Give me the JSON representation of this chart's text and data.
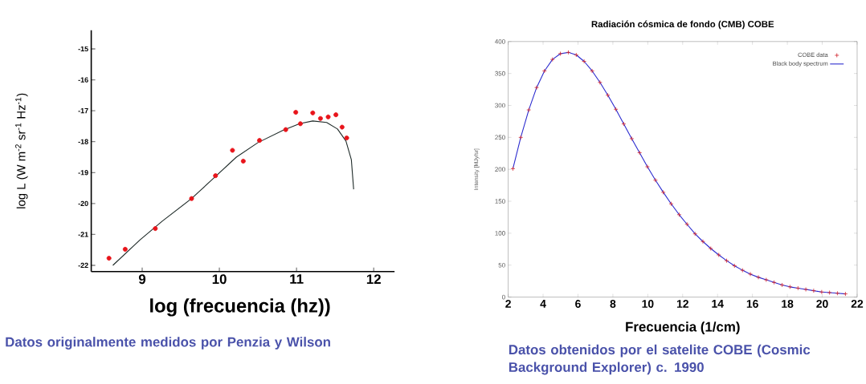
{
  "chart_data": [
    {
      "type": "scatter",
      "xlabel": "log (frecuencia (hz))",
      "ylabel": "log  L (W m$^{-2}$ sr$^{-1}$ Hz$^{-1}$)",
      "annotations": [
        "Datos originalmente medidos por Penzia y Wilson"
      ],
      "xlim": [
        8.34,
        12.27
      ],
      "ylim": [
        -22.2,
        -14.4
      ],
      "xticks": [
        9,
        10,
        11,
        12
      ],
      "yticks": [
        -22,
        -21,
        -20,
        -19,
        -18,
        -17,
        -16,
        -15
      ],
      "series": [
        {
          "marker": "circle",
          "color": "#e8141b",
          "x": [
            8.57,
            8.78,
            9.17,
            9.64,
            9.95,
            10.17,
            10.31,
            10.52,
            10.86,
            10.99,
            11.05,
            11.21,
            11.31,
            11.41,
            11.51,
            11.59,
            11.65
          ],
          "values": [
            -21.77,
            -21.48,
            -20.81,
            -19.84,
            -19.1,
            -18.28,
            -18.63,
            -17.96,
            -17.61,
            -17.05,
            -17.42,
            -17.07,
            -17.25,
            -17.2,
            -17.13,
            -17.53,
            -17.88
          ]
        },
        {
          "type": "line",
          "color": "#1e2a28",
          "x": [
            8.62,
            8.97,
            9.26,
            9.64,
            9.93,
            10.22,
            10.5,
            10.82,
            11.04,
            11.21,
            11.39,
            11.53,
            11.64,
            11.71,
            11.74
          ],
          "values": [
            -22.0,
            -21.18,
            -20.57,
            -19.84,
            -19.17,
            -18.5,
            -18.03,
            -17.64,
            -17.42,
            -17.33,
            -17.38,
            -17.59,
            -17.98,
            -18.58,
            -19.54
          ]
        }
      ]
    },
    {
      "type": "scatter",
      "title": "Radiación cósmica de fondo (CMB) COBE",
      "xlabel": "Frecuencia (1/cm)",
      "ylabel": "Intensity [MJy/sr]",
      "annotations": [
        "Datos obtenidos por el satelite COBE (Cosmic Background Explorer) c. 1990"
      ],
      "xlim": [
        2,
        22
      ],
      "ylim": [
        0,
        400
      ],
      "xticks": [
        2,
        4,
        6,
        8,
        10,
        12,
        14,
        16,
        18,
        20,
        22
      ],
      "yticks": [
        0,
        50,
        100,
        150,
        200,
        250,
        300,
        350,
        400
      ],
      "legend": "top right",
      "series": [
        {
          "name": "COBE data",
          "marker": "cross",
          "color": "#d0202a",
          "x": [
            2.27,
            2.72,
            3.18,
            3.63,
            4.08,
            4.54,
            4.99,
            5.45,
            5.9,
            6.35,
            6.81,
            7.26,
            7.71,
            8.17,
            8.62,
            9.08,
            9.53,
            9.98,
            10.44,
            10.89,
            11.34,
            11.8,
            12.25,
            12.71,
            13.16,
            13.61,
            14.07,
            14.52,
            14.97,
            15.43,
            15.88,
            16.34,
            16.79,
            17.24,
            17.7,
            18.15,
            18.61,
            19.06,
            19.51,
            19.97,
            20.42,
            20.87,
            21.33
          ],
          "values": [
            201,
            250,
            293,
            328,
            354,
            372,
            381,
            383,
            379,
            369,
            354,
            336,
            316,
            294,
            271,
            248,
            226,
            204,
            183,
            164,
            146,
            129,
            114,
            99,
            87,
            76,
            66,
            57,
            49,
            42,
            36,
            31,
            27,
            23,
            19,
            16,
            14,
            12,
            10,
            8,
            7,
            6,
            5
          ]
        },
        {
          "type": "line",
          "name": "Black body spectrum",
          "marker": "none",
          "color": "#2b2bcf",
          "x": [
            2.27,
            2.72,
            3.18,
            3.63,
            4.08,
            4.54,
            4.99,
            5.45,
            5.9,
            6.35,
            6.81,
            7.26,
            7.71,
            8.17,
            8.62,
            9.08,
            9.53,
            9.98,
            10.44,
            10.89,
            11.34,
            11.8,
            12.25,
            12.71,
            13.16,
            13.61,
            14.07,
            14.52,
            14.97,
            15.43,
            15.88,
            16.34,
            16.79,
            17.24,
            17.7,
            18.15,
            18.61,
            19.06,
            19.51,
            19.97,
            20.42,
            20.87,
            21.33
          ],
          "values": [
            201,
            250,
            293,
            328,
            354,
            372,
            381,
            383,
            379,
            369,
            354,
            336,
            316,
            294,
            271,
            248,
            226,
            204,
            183,
            164,
            146,
            129,
            114,
            99,
            87,
            76,
            66,
            57,
            49,
            42,
            36,
            31,
            27,
            23,
            19,
            16,
            14,
            12,
            10,
            8,
            7,
            6,
            5
          ]
        }
      ]
    }
  ]
}
